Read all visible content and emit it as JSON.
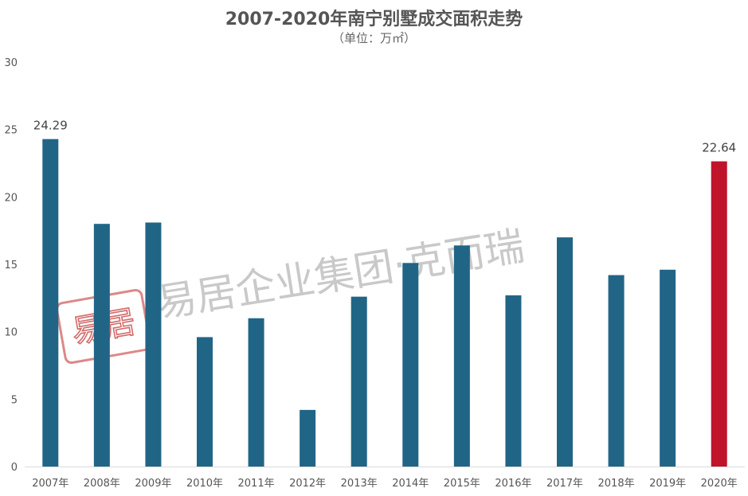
{
  "chart_data": {
    "type": "bar",
    "title": "2007-2020年南宁别墅成交面积走势",
    "subtitle": "（单位：万㎡）",
    "categories": [
      "2007年",
      "2008年",
      "2009年",
      "2010年",
      "2011年",
      "2012年",
      "2013年",
      "2014年",
      "2015年",
      "2016年",
      "2017年",
      "2018年",
      "2019年",
      "2020年"
    ],
    "values": [
      24.29,
      18.0,
      18.1,
      9.6,
      11.0,
      4.2,
      12.6,
      15.1,
      16.4,
      12.7,
      17.0,
      14.2,
      14.6,
      22.64
    ],
    "data_labels": [
      {
        "index": 0,
        "text": "24.29"
      },
      {
        "index": 13,
        "text": "22.64"
      }
    ],
    "ylim": [
      0,
      30
    ],
    "yticks": [
      0,
      5,
      10,
      15,
      20,
      25,
      30
    ],
    "grid": false,
    "legend": "none",
    "colors": {
      "bar": "#216586",
      "highlight": "#c0142b",
      "axis": "#d9d9d9"
    },
    "highlight_index": 13
  },
  "watermark": {
    "text": "易居企业集团·克而瑞",
    "stamp_text": "易居",
    "color": "#b8b8b8",
    "stamp_color": "#d46a6a"
  }
}
